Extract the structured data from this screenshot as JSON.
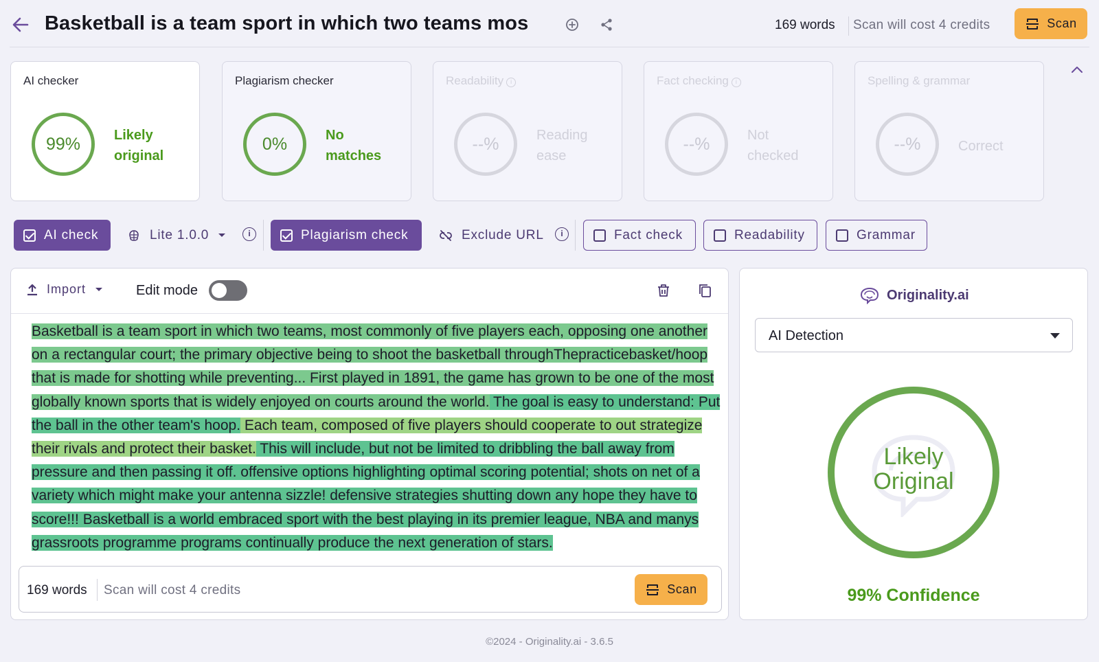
{
  "header": {
    "title": "Basketball is a team sport in which two teams mos",
    "word_count": "169 words",
    "scan_cost": "Scan will cost 4 credits",
    "scan_label": "Scan"
  },
  "cards": [
    {
      "title": "AI checker",
      "value": "99%",
      "label_line1": "Likely",
      "label_line2": "original",
      "state": "active"
    },
    {
      "title": "Plagiarism checker",
      "value": "0%",
      "label_line1": "No",
      "label_line2": "matches",
      "state": "enabled"
    },
    {
      "title": "Readability",
      "value": "--%",
      "label_line1": "Reading",
      "label_line2": "ease",
      "state": "disabled"
    },
    {
      "title": "Fact checking",
      "value": "--%",
      "label_line1": "Not",
      "label_line2": "checked",
      "state": "disabled"
    },
    {
      "title": "Spelling & grammar",
      "value": "--%",
      "label_line1": "Correct",
      "label_line2": "",
      "state": "disabled"
    }
  ],
  "toolbar": {
    "ai_check": "AI check",
    "model": "Lite 1.0.0",
    "plagiarism_check": "Plagiarism check",
    "exclude_url": "Exclude URL",
    "fact_check": "Fact check",
    "readability": "Readability",
    "grammar": "Grammar",
    "info": "i"
  },
  "editor": {
    "import_label": "Import",
    "edit_mode_label": "Edit mode",
    "edit_mode_on": false,
    "segments": [
      {
        "text": "Basketball is a team sport in which two teams, most commonly of five players each, opposing one another on a rectangular court; the primary objective being to shoot the basketball throughThepracticebasket/hoop that is made for shotting while preventing... First played in 1891, the game has grown to be one of the most globally known sports that is widely enjoyed on courts around the world.",
        "highlight": "hl1"
      },
      {
        "text": " The goal is easy to understand: Put the ball in the other team's hoop.",
        "highlight": "hl2"
      },
      {
        "text": " Each team, composed of five players should cooperate to out strategize their rivals and protect their basket.",
        "highlight": "hl3"
      },
      {
        "text": " This will include, but not be limited to dribbling the ball away from pressure and then passing it off. offensive options highlighting optimal scoring potential; shots on net of a variety which might make your antenna sizzle! defensive strategies shutting down any hope they have to score!!! Basketball is a world embraced sport with the best playing in its premier league, NBA and manys grassroots programme programs continually produce the next generation of stars.",
        "highlight": "hl2"
      }
    ],
    "footer_words": "169 words",
    "footer_cost": "Scan will cost 4 credits",
    "footer_scan": "Scan"
  },
  "result": {
    "brand": "Originality.ai",
    "mode": "AI Detection",
    "verdict_line1": "Likely",
    "verdict_line2": "Original",
    "confidence": "99% Confidence"
  },
  "footer": "©2024 - Originality.ai - 3.6.5",
  "colors": {
    "accent": "#6a4c9c",
    "scan": "#f6b04a",
    "success": "#6aa84f",
    "highlight_a": "#7cc98e",
    "highlight_b": "#5ec391",
    "highlight_c": "#9fd485"
  }
}
